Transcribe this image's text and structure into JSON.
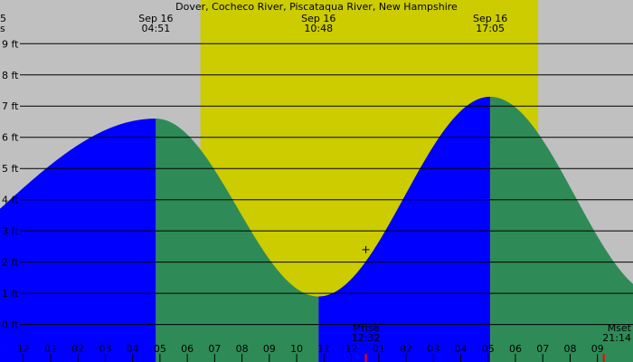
{
  "chart_data": {
    "type": "area",
    "title": "Dover, Cocheco River, Piscataqua River, New Hampshire",
    "left_edge_labels": [
      "5",
      "s"
    ],
    "y_unit": "ft",
    "ylim": [
      -1.2,
      10.4
    ],
    "xlim_hours": [
      23.15,
      46.3
    ],
    "y_ticks": [
      {
        "value": 0,
        "label": "0 ft"
      },
      {
        "value": 1,
        "label": "1 ft"
      },
      {
        "value": 2,
        "label": "2 ft"
      },
      {
        "value": 3,
        "label": "3 ft"
      },
      {
        "value": 4,
        "label": "4 ft"
      },
      {
        "value": 5,
        "label": "5 ft"
      },
      {
        "value": 6,
        "label": "6 ft"
      },
      {
        "value": 7,
        "label": "7 ft"
      },
      {
        "value": 8,
        "label": "8 ft"
      },
      {
        "value": 9,
        "label": "9 ft"
      }
    ],
    "x_ticks": [
      {
        "hour": 23,
        "label": "11"
      },
      {
        "hour": 24,
        "label": "12"
      },
      {
        "hour": 25,
        "label": "01"
      },
      {
        "hour": 26,
        "label": "02"
      },
      {
        "hour": 27,
        "label": "03"
      },
      {
        "hour": 28,
        "label": "04"
      },
      {
        "hour": 29,
        "label": "05"
      },
      {
        "hour": 30,
        "label": "06"
      },
      {
        "hour": 31,
        "label": "07"
      },
      {
        "hour": 32,
        "label": "08"
      },
      {
        "hour": 33,
        "label": "09"
      },
      {
        "hour": 34,
        "label": "10"
      },
      {
        "hour": 35,
        "label": "11"
      },
      {
        "hour": 36,
        "label": "12"
      },
      {
        "hour": 37,
        "label": "01"
      },
      {
        "hour": 38,
        "label": "02"
      },
      {
        "hour": 39,
        "label": "03"
      },
      {
        "hour": 40,
        "label": "04"
      },
      {
        "hour": 41,
        "label": "05"
      },
      {
        "hour": 42,
        "label": "06"
      },
      {
        "hour": 43,
        "label": "07"
      },
      {
        "hour": 44,
        "label": "08"
      },
      {
        "hour": 45,
        "label": "09"
      }
    ],
    "daylight": {
      "start_hour": 30.48,
      "end_hour": 42.83
    },
    "tide_extremes": [
      {
        "hour": 17.55,
        "height": 0.9,
        "type": "low"
      },
      {
        "hour": 28.85,
        "height": 6.6,
        "type": "high",
        "date_label": "Sep 16",
        "time_label": "04:51"
      },
      {
        "hour": 34.8,
        "height": 0.9,
        "type": "low",
        "date_label": "Sep 16",
        "time_label": "10:48"
      },
      {
        "hour": 41.08,
        "height": 7.3,
        "type": "high",
        "date_label": "Sep 16",
        "time_label": "17:05"
      },
      {
        "hour": 47.3,
        "height": 0.9,
        "type": "low"
      }
    ],
    "moon_events": [
      {
        "name": "Mrise",
        "time_label": "12:32",
        "hour": 36.53
      },
      {
        "name": "Mset",
        "time_label": "21:14",
        "hour": 45.23
      }
    ],
    "current_marker": {
      "hour": 36.53,
      "height": 2.4
    },
    "colors": {
      "night": "#c0c0c0",
      "daylight": "#cccc00",
      "rising_tide": "#0000ff",
      "falling_tide": "#2e8b57",
      "moon_mark": "#ff0000",
      "grid": "#000000"
    }
  }
}
